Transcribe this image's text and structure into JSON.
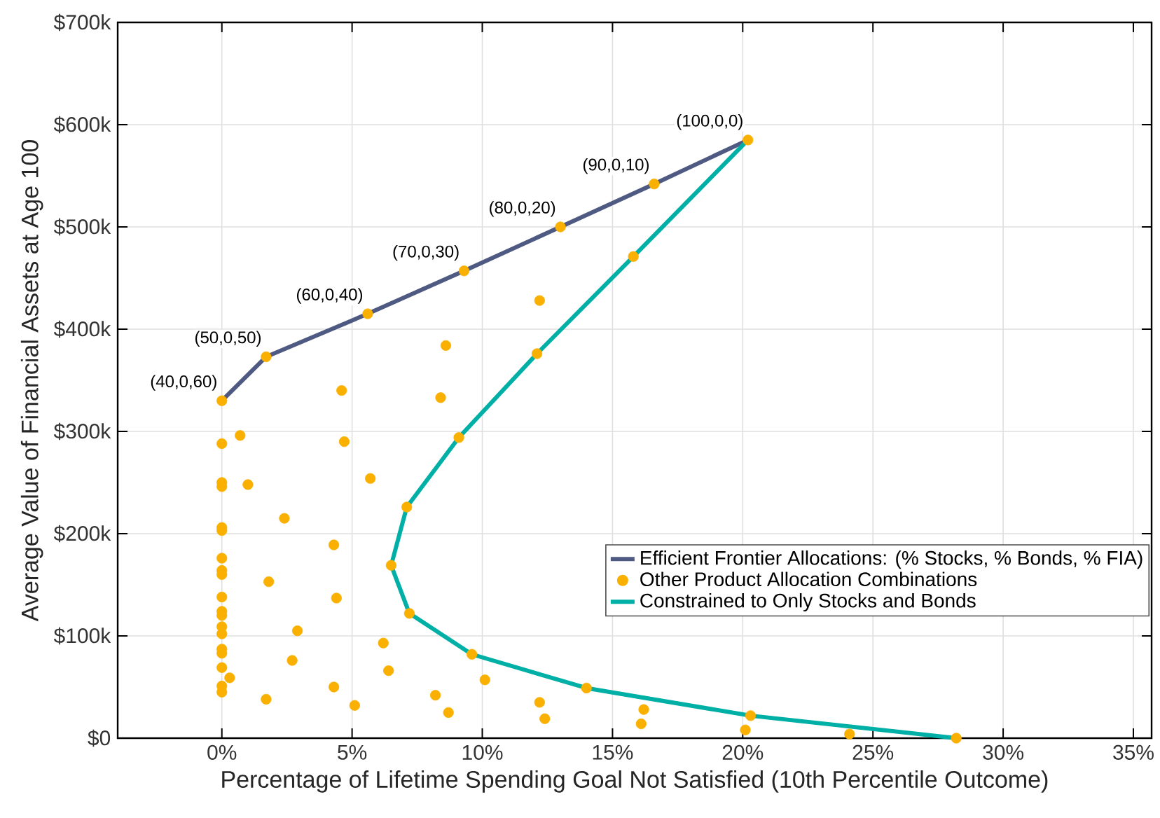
{
  "chart_data": {
    "type": "line",
    "xlabel": "Percentage of Lifetime Spending Goal Not Satisfied (10th Percentile Outcome)",
    "ylabel": "Average Value of Financial Assets at Age 100",
    "xlim": [
      -4,
      35.7
    ],
    "ylim": [
      0,
      700
    ],
    "xticks": [
      {
        "value": 0,
        "label": "0%"
      },
      {
        "value": 5,
        "label": "5%"
      },
      {
        "value": 10,
        "label": "10%"
      },
      {
        "value": 15,
        "label": "15%"
      },
      {
        "value": 20,
        "label": "20%"
      },
      {
        "value": 25,
        "label": "25%"
      },
      {
        "value": 30,
        "label": "30%"
      },
      {
        "value": 35,
        "label": "35%"
      }
    ],
    "yticks": [
      {
        "value": 0,
        "label": "$0"
      },
      {
        "value": 100,
        "label": "$100k"
      },
      {
        "value": 200,
        "label": "$200k"
      },
      {
        "value": 300,
        "label": "$300k"
      },
      {
        "value": 400,
        "label": "$400k"
      },
      {
        "value": 500,
        "label": "$500k"
      },
      {
        "value": 600,
        "label": "$600k"
      },
      {
        "value": 700,
        "label": "$700k"
      }
    ],
    "grid": true,
    "legend": "bottom right",
    "series": [
      {
        "name": "Efficient Frontier Allocations: (% Stocks, % Bonds, % FIA)",
        "color": "#4f5a83",
        "marker": "none",
        "x": [
          0,
          1.7,
          5.6,
          9.3,
          13.0,
          16.6,
          20.2
        ],
        "values": [
          330,
          373,
          415,
          457,
          500,
          542,
          585
        ]
      },
      {
        "name": "Other Product Allocation Combinations",
        "type": "scatter",
        "color": "#f9b000",
        "marker": "circle",
        "x": [
          0,
          1.7,
          5.6,
          9.3,
          13.0,
          16.6,
          20.2,
          15.8,
          12.1,
          9.1,
          7.1,
          6.5,
          7.2,
          9.6,
          14.0,
          20.3,
          28.2,
          8.6,
          4.6,
          8.4,
          0,
          0.7,
          4.7,
          12.2,
          0,
          0,
          1.0,
          5.7,
          2.4,
          0,
          0,
          4.3,
          0,
          0,
          0,
          1.8,
          4.4,
          0,
          0,
          0,
          2.9,
          0,
          0,
          6.2,
          0,
          0,
          2.7,
          6.4,
          0,
          0.3,
          0,
          0,
          4.3,
          1.7,
          5.1,
          8.2,
          8.7,
          10.1,
          12.2,
          12.4,
          16.2,
          16.1,
          20.1,
          24.1
        ],
        "values": [
          330,
          373,
          415,
          457,
          500,
          542,
          585,
          471,
          376,
          294,
          226,
          169,
          122,
          82,
          49,
          22,
          0,
          384,
          340,
          333,
          288,
          296,
          290,
          428,
          250,
          246,
          248,
          254,
          215,
          206,
          203,
          189,
          176,
          164,
          160,
          153,
          137,
          138,
          124,
          120,
          105,
          109,
          102,
          93,
          87,
          83,
          76,
          66,
          69,
          59,
          51,
          45,
          50,
          38,
          32,
          42,
          25,
          57,
          35,
          19,
          28,
          14,
          8,
          4
        ]
      },
      {
        "name": "Constrained to Only Stocks and Bonds",
        "type": "line",
        "color": "#00b0a6",
        "marker": "none",
        "x": [
          20.2,
          15.8,
          12.1,
          9.1,
          7.1,
          6.5,
          7.2,
          9.6,
          14.0,
          20.3,
          28.2
        ],
        "values": [
          585,
          471,
          376,
          294,
          226,
          169,
          122,
          82,
          49,
          22,
          0
        ]
      }
    ],
    "annotations": [
      {
        "text": "(40,0,60)",
        "x": 0,
        "y": 330
      },
      {
        "text": "(50,0,50)",
        "x": 1.7,
        "y": 373
      },
      {
        "text": "(60,0,40)",
        "x": 5.6,
        "y": 415
      },
      {
        "text": "(70,0,30)",
        "x": 9.3,
        "y": 457
      },
      {
        "text": "(80,0,20)",
        "x": 13.0,
        "y": 500
      },
      {
        "text": "(90,0,10)",
        "x": 16.6,
        "y": 542
      },
      {
        "text": "(100,0,0)",
        "x": 20.2,
        "y": 585
      }
    ]
  }
}
